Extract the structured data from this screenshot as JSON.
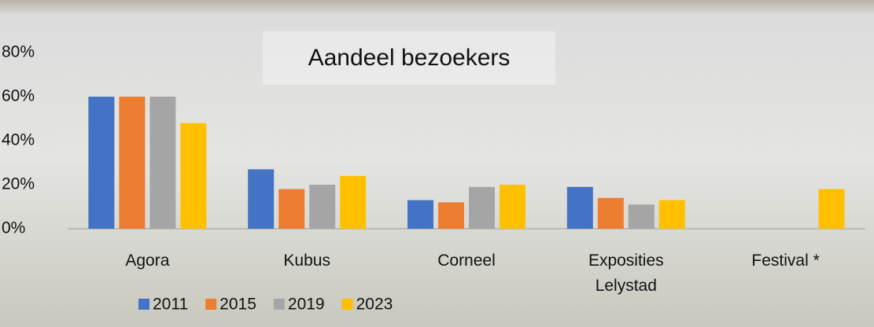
{
  "chart_data": {
    "type": "bar",
    "title": "Aandeel bezoekers",
    "categories": [
      "Agora",
      "Kubus",
      "Corneel",
      "Exposities Lelystad",
      "Festival *"
    ],
    "series": [
      {
        "name": "2011",
        "color": "#4472c4",
        "values": [
          60,
          27,
          13,
          19,
          null
        ]
      },
      {
        "name": "2015",
        "color": "#ed7d31",
        "values": [
          60,
          18,
          12,
          14,
          null
        ]
      },
      {
        "name": "2019",
        "color": "#a5a5a5",
        "values": [
          60,
          20,
          19,
          11,
          null
        ]
      },
      {
        "name": "2023",
        "color": "#ffc000",
        "values": [
          48,
          24,
          20,
          13,
          18
        ]
      }
    ],
    "ylim": [
      0,
      80
    ],
    "yticks": [
      {
        "value": 0,
        "label": "0%"
      },
      {
        "value": 20,
        "label": "20%"
      },
      {
        "value": 40,
        "label": "40%"
      },
      {
        "value": 60,
        "label": "60%"
      },
      {
        "value": 80,
        "label": "80%"
      }
    ],
    "grid": false
  }
}
